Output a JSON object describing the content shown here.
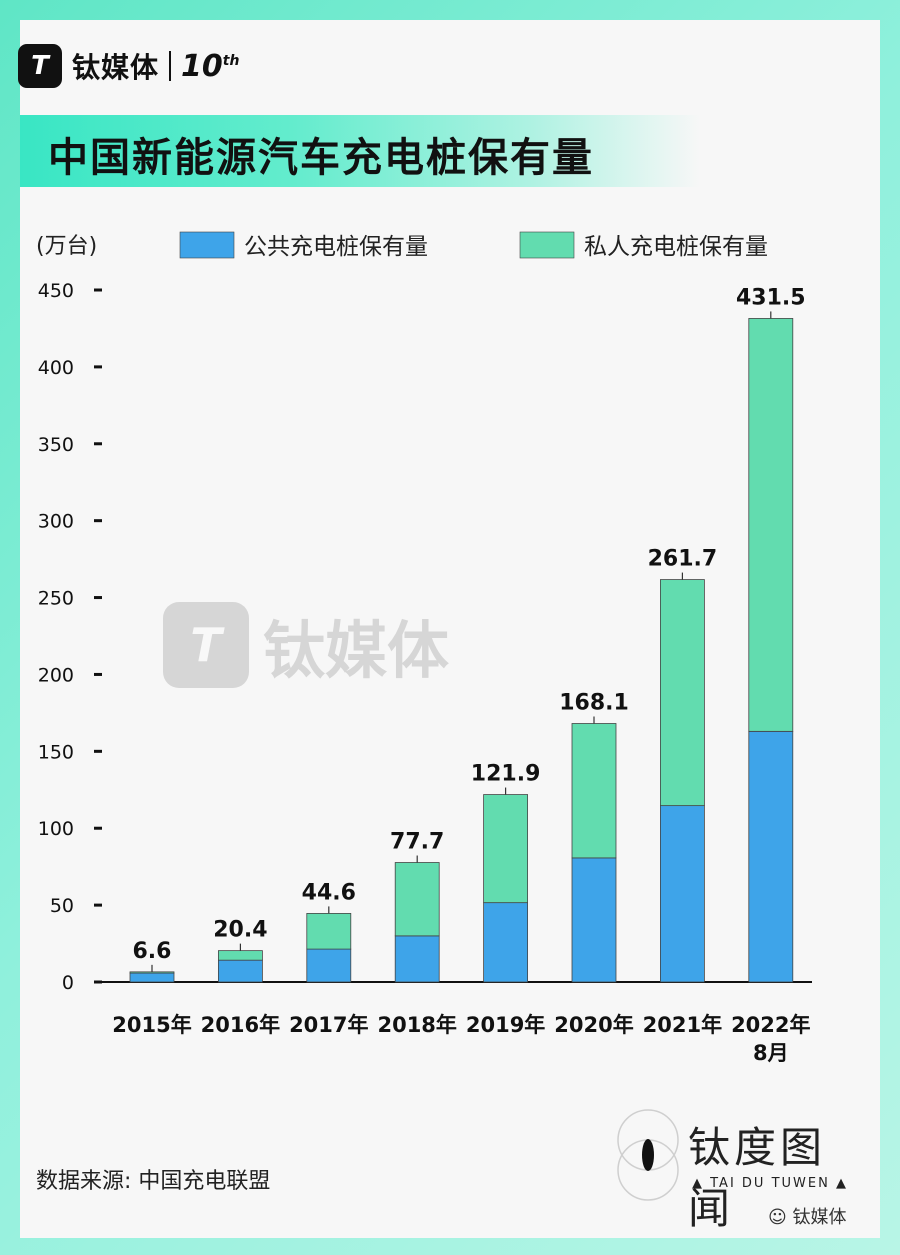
{
  "brand": {
    "logo_text": "T",
    "name": "钛媒体",
    "anniversary": "10",
    "anniversary_suffix": "th"
  },
  "title": "中国新能源汽车充电桩保有量",
  "source": "数据来源: 中国充电联盟",
  "tuwen": {
    "name": "钛度图闻",
    "sub": "▲ TAI DU TUWEN ▲"
  },
  "wechat_label": "钛媒体",
  "watermark": {
    "logo_text": "T",
    "name": "钛媒体"
  },
  "colors": {
    "public": "#3ea4e9",
    "private": "#62dcaf",
    "title_accent": "#39e6c4"
  },
  "chart_data": {
    "type": "bar",
    "stacked": true,
    "unit_label": "(万台)",
    "categories": [
      "2015年",
      "2016年",
      "2017年",
      "2018年",
      "2019年",
      "2020年",
      "2021年",
      "2022年\n8月"
    ],
    "series": [
      {
        "name": "公共充电桩保有量",
        "color": "#3ea4e9",
        "values": [
          5.8,
          14.2,
          21.4,
          30.0,
          51.6,
          80.7,
          114.7,
          163.0
        ]
      },
      {
        "name": "私人充电桩保有量",
        "color": "#62dcaf",
        "values": [
          0.8,
          6.2,
          23.2,
          47.7,
          70.3,
          87.4,
          147.0,
          268.5
        ]
      }
    ],
    "totals": [
      "6.6",
      "20.4",
      "44.6",
      "77.7",
      "121.9",
      "168.1",
      "261.7",
      "431.5"
    ],
    "yticks": [
      0,
      50,
      100,
      150,
      200,
      250,
      300,
      350,
      400,
      450
    ],
    "ylim": [
      0,
      450
    ],
    "legend_position": "top",
    "grid": false
  }
}
